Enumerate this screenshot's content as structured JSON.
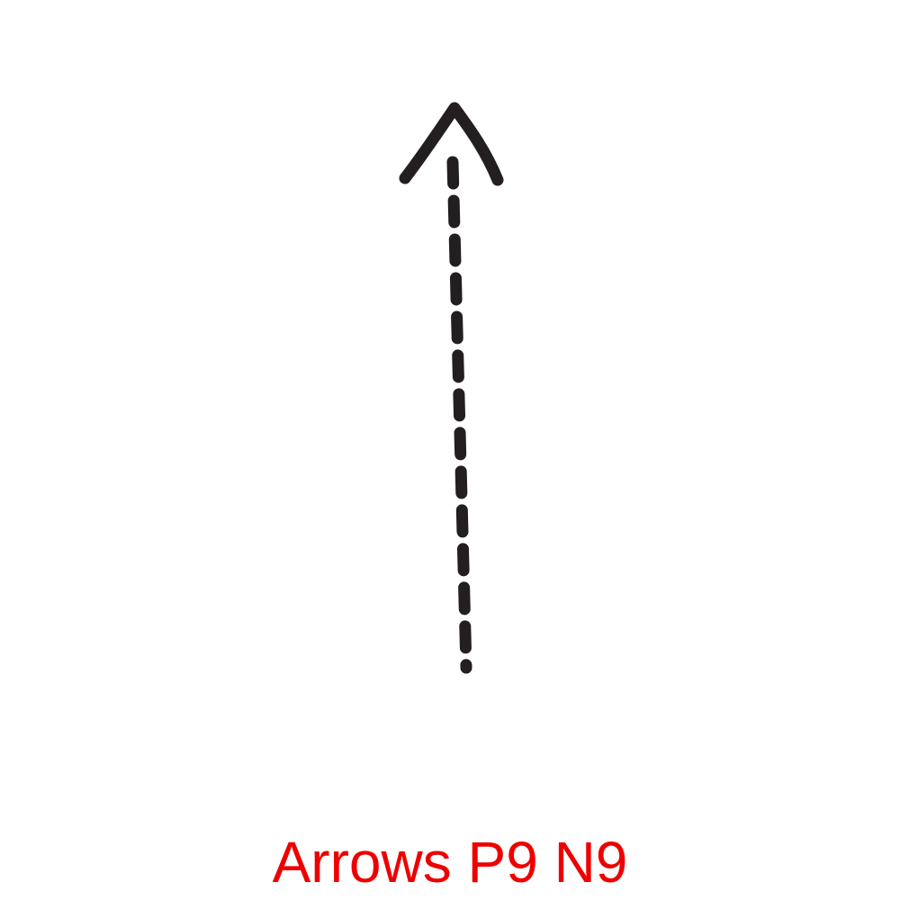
{
  "caption": {
    "text": "Arrows P9 N9",
    "color": "#ee0000"
  },
  "arrow": {
    "icon": "dashed-up-arrow-icon",
    "direction": "up",
    "line_style": "dashed",
    "stroke_color": "#231f20"
  }
}
